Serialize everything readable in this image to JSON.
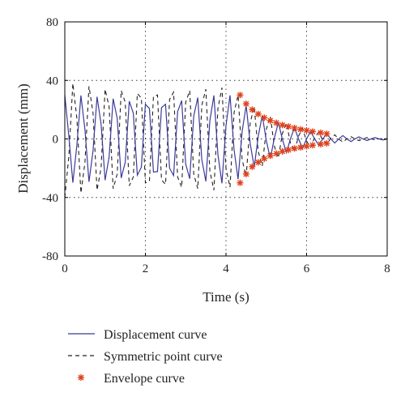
{
  "chart_data": {
    "type": "line",
    "xlabel": "Time (s)",
    "ylabel": "Displacement (mm)",
    "xlim": [
      0,
      8
    ],
    "ylim": [
      -80,
      80
    ],
    "xticks": [
      0,
      2,
      4,
      6,
      8
    ],
    "yticks": [
      80,
      40,
      0,
      -40,
      -80
    ],
    "x_tick_labels": [
      "0",
      "2",
      "4",
      "6",
      "8"
    ],
    "y_tick_labels": [
      "80",
      "40",
      "0",
      "-40",
      "-80"
    ],
    "grid": true,
    "legend_position": "below-plot",
    "series": [
      {
        "name": "Displacement curve",
        "style": "solid",
        "color": "#3b3b9a",
        "x": [
          0.0,
          0.1,
          0.2,
          0.3,
          0.4,
          0.5,
          0.6,
          0.7,
          0.8,
          0.9,
          1.0,
          1.1,
          1.2,
          1.3,
          1.4,
          1.5,
          1.6,
          1.7,
          1.8,
          1.9,
          2.0,
          2.1,
          2.2,
          2.3,
          2.4,
          2.5,
          2.6,
          2.7,
          2.8,
          2.9,
          3.0,
          3.1,
          3.2,
          3.3,
          3.4,
          3.5,
          3.6,
          3.7,
          3.8,
          3.9,
          4.0,
          4.1,
          4.2,
          4.3,
          4.4,
          4.5,
          4.6,
          4.7,
          4.8,
          4.9,
          5.0,
          5.1,
          5.2,
          5.3,
          5.4,
          5.5,
          5.6,
          5.7,
          5.8,
          5.9,
          6.0,
          6.1,
          6.2,
          6.3,
          6.4,
          6.5,
          6.6,
          6.7,
          6.8,
          6.9,
          7.0,
          7.1,
          7.2,
          7.3,
          7.4,
          7.5,
          7.6,
          7.7,
          7.8,
          7.9,
          8.0
        ],
        "y": [
          30.0,
          2.1,
          -29.9,
          -4.2,
          29.7,
          6.3,
          -29.3,
          -8.3,
          28.8,
          10.3,
          -28.2,
          -12.2,
          27.5,
          14.1,
          -26.7,
          -15.9,
          25.8,
          17.6,
          -24.8,
          -19.3,
          23.7,
          20.8,
          -22.6,
          -22.3,
          21.4,
          23.7,
          -20.0,
          -25.0,
          18.7,
          26.2,
          -17.2,
          -27.2,
          15.7,
          28.2,
          -14.1,
          -29.0,
          12.5,
          29.7,
          -10.8,
          -30.3,
          9.1,
          29.8,
          -7.3,
          -27.5,
          4.9,
          23.0,
          -3.0,
          -19.3,
          1.8,
          16.1,
          -1.0,
          -13.4,
          0.6,
          11.2,
          -0.3,
          -9.3,
          0.1,
          7.7,
          0.0,
          -6.3,
          0.0,
          5.2,
          0.0,
          -4.2,
          0.0,
          3.4,
          0.0,
          -2.8,
          0.0,
          2.3,
          0.0,
          -1.8,
          0.0,
          1.4,
          0.0,
          -1.1,
          0.0,
          0.9,
          0.0,
          -0.7,
          0.0
        ]
      },
      {
        "name": "Symmetric point curve",
        "style": "dashed",
        "color": "#222222",
        "x": [
          0.0,
          0.1,
          0.2,
          0.3,
          0.4,
          0.5,
          0.6,
          0.7,
          0.8,
          0.9,
          1.0,
          1.1,
          1.2,
          1.3,
          1.4,
          1.5,
          1.6,
          1.7,
          1.8,
          1.9,
          2.0,
          2.1,
          2.2,
          2.3,
          2.4,
          2.5,
          2.6,
          2.7,
          2.8,
          2.9,
          3.0,
          3.1,
          3.2,
          3.3,
          3.4,
          3.5,
          3.6,
          3.7,
          3.8,
          3.9,
          4.0,
          4.1,
          4.2,
          4.3,
          4.4,
          4.5,
          4.6,
          4.7,
          4.8,
          4.9,
          5.0,
          5.1,
          5.2,
          5.3,
          5.4,
          5.5,
          5.6,
          5.7,
          5.8,
          5.9,
          6.0,
          6.1,
          6.2,
          6.3,
          6.4,
          6.5,
          6.6,
          6.7,
          6.8,
          6.9,
          7.0,
          7.1,
          7.2,
          7.3,
          7.4,
          7.5,
          7.6,
          7.7,
          7.8,
          7.9,
          8.0
        ],
        "y": [
          -40.0,
          -12.0,
          38.0,
          14.0,
          -37.0,
          -16.0,
          36.0,
          18.0,
          -35.0,
          -20.0,
          34.0,
          22.0,
          -34.0,
          -24.0,
          33.0,
          25.0,
          -32.0,
          -26.0,
          31.0,
          28.0,
          -30.0,
          -29.0,
          29.0,
          30.0,
          -28.0,
          -31.0,
          27.0,
          32.0,
          -26.0,
          -33.0,
          25.0,
          33.0,
          -24.0,
          -34.0,
          23.0,
          34.0,
          -22.0,
          -35.0,
          21.0,
          35.0,
          -20.0,
          -33.0,
          18.0,
          30.0,
          -14.0,
          -26.0,
          11.0,
          22.0,
          -8.5,
          -18.5,
          6.5,
          15.5,
          -5.0,
          -13.0,
          3.8,
          10.8,
          -2.8,
          -8.8,
          2.0,
          7.2,
          -1.5,
          -5.8,
          1.0,
          4.6,
          -0.7,
          -3.6,
          0.4,
          2.8,
          -0.2,
          -2.1,
          0.0,
          1.6,
          0.0,
          -1.2,
          0.0,
          0.9,
          0.0,
          -0.6,
          0.0,
          0.4,
          0.0
        ]
      },
      {
        "name": "Envelope curve",
        "style": "markers",
        "color": "#e0401a",
        "points": [
          [
            4.35,
            30.0
          ],
          [
            4.5,
            24.0
          ],
          [
            4.65,
            20.0
          ],
          [
            4.8,
            17.0
          ],
          [
            4.95,
            14.5
          ],
          [
            5.1,
            12.5
          ],
          [
            5.25,
            11.0
          ],
          [
            5.4,
            9.5
          ],
          [
            5.55,
            8.5
          ],
          [
            5.7,
            7.5
          ],
          [
            5.85,
            6.5
          ],
          [
            6.0,
            5.8
          ],
          [
            6.15,
            5.0
          ],
          [
            6.35,
            4.2
          ],
          [
            6.5,
            3.5
          ],
          [
            4.35,
            -30.0
          ],
          [
            4.5,
            -24.0
          ],
          [
            4.65,
            -19.0
          ],
          [
            4.8,
            -16.0
          ],
          [
            4.95,
            -13.5
          ],
          [
            5.1,
            -11.5
          ],
          [
            5.25,
            -10.0
          ],
          [
            5.4,
            -8.5
          ],
          [
            5.55,
            -7.5
          ],
          [
            5.7,
            -6.5
          ],
          [
            5.85,
            -5.8
          ],
          [
            6.0,
            -5.0
          ],
          [
            6.15,
            -4.3
          ],
          [
            6.35,
            -3.6
          ],
          [
            6.5,
            -3.0
          ]
        ]
      }
    ]
  }
}
